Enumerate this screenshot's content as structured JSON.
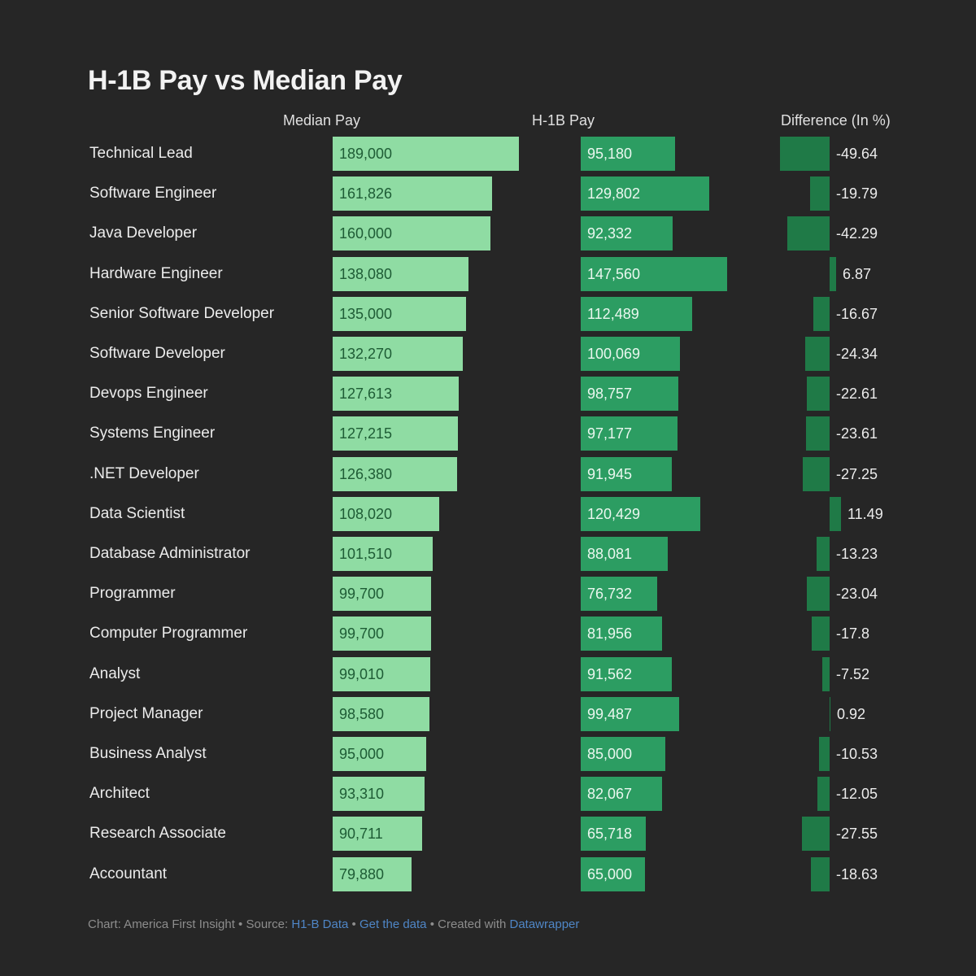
{
  "title": "H-1B Pay vs Median Pay",
  "columns": {
    "median": "Median Pay",
    "h1b": "H-1B Pay",
    "diff": "Difference (In %)"
  },
  "colors": {
    "background": "#262626",
    "median_bar": "#8fdca3",
    "h1b_bar": "#2c9d62",
    "diff_bar": "#1f7a47",
    "link": "#4f86c6"
  },
  "chart_data": {
    "type": "table",
    "columns": [
      "Median Pay",
      "H-1B Pay",
      "Difference (In %)"
    ],
    "rows": [
      {
        "label": "Technical Lead",
        "median": 189000,
        "median_text": "189,000",
        "h1b": 95180,
        "h1b_text": "95,180",
        "diff": -49.64,
        "diff_text": "-49.64"
      },
      {
        "label": "Software Engineer",
        "median": 161826,
        "median_text": "161,826",
        "h1b": 129802,
        "h1b_text": "129,802",
        "diff": -19.79,
        "diff_text": "-19.79"
      },
      {
        "label": "Java Developer",
        "median": 160000,
        "median_text": "160,000",
        "h1b": 92332,
        "h1b_text": "92,332",
        "diff": -42.29,
        "diff_text": "-42.29"
      },
      {
        "label": "Hardware Engineer",
        "median": 138080,
        "median_text": "138,080",
        "h1b": 147560,
        "h1b_text": "147,560",
        "diff": 6.87,
        "diff_text": "6.87"
      },
      {
        "label": "Senior Software Developer",
        "median": 135000,
        "median_text": "135,000",
        "h1b": 112489,
        "h1b_text": "112,489",
        "diff": -16.67,
        "diff_text": "-16.67"
      },
      {
        "label": "Software Developer",
        "median": 132270,
        "median_text": "132,270",
        "h1b": 100069,
        "h1b_text": "100,069",
        "diff": -24.34,
        "diff_text": "-24.34"
      },
      {
        "label": "Devops Engineer",
        "median": 127613,
        "median_text": "127,613",
        "h1b": 98757,
        "h1b_text": "98,757",
        "diff": -22.61,
        "diff_text": "-22.61"
      },
      {
        "label": "Systems Engineer",
        "median": 127215,
        "median_text": "127,215",
        "h1b": 97177,
        "h1b_text": "97,177",
        "diff": -23.61,
        "diff_text": "-23.61"
      },
      {
        "label": ".NET Developer",
        "median": 126380,
        "median_text": "126,380",
        "h1b": 91945,
        "h1b_text": "91,945",
        "diff": -27.25,
        "diff_text": "-27.25"
      },
      {
        "label": "Data Scientist",
        "median": 108020,
        "median_text": "108,020",
        "h1b": 120429,
        "h1b_text": "120,429",
        "diff": 11.49,
        "diff_text": "11.49"
      },
      {
        "label": "Database Administrator",
        "median": 101510,
        "median_text": "101,510",
        "h1b": 88081,
        "h1b_text": "88,081",
        "diff": -13.23,
        "diff_text": "-13.23"
      },
      {
        "label": "Programmer",
        "median": 99700,
        "median_text": "99,700",
        "h1b": 76732,
        "h1b_text": "76,732",
        "diff": -23.04,
        "diff_text": "-23.04"
      },
      {
        "label": "Computer Programmer",
        "median": 99700,
        "median_text": "99,700",
        "h1b": 81956,
        "h1b_text": "81,956",
        "diff": -17.8,
        "diff_text": "-17.8"
      },
      {
        "label": "Analyst",
        "median": 99010,
        "median_text": "99,010",
        "h1b": 91562,
        "h1b_text": "91,562",
        "diff": -7.52,
        "diff_text": "-7.52"
      },
      {
        "label": "Project Manager",
        "median": 98580,
        "median_text": "98,580",
        "h1b": 99487,
        "h1b_text": "99,487",
        "diff": 0.92,
        "diff_text": "0.92"
      },
      {
        "label": "Business Analyst",
        "median": 95000,
        "median_text": "95,000",
        "h1b": 85000,
        "h1b_text": "85,000",
        "diff": -10.53,
        "diff_text": "-10.53"
      },
      {
        "label": "Architect",
        "median": 93310,
        "median_text": "93,310",
        "h1b": 82067,
        "h1b_text": "82,067",
        "diff": -12.05,
        "diff_text": "-12.05"
      },
      {
        "label": "Research Associate",
        "median": 90711,
        "median_text": "90,711",
        "h1b": 65718,
        "h1b_text": "65,718",
        "diff": -27.55,
        "diff_text": "-27.55"
      },
      {
        "label": "Accountant",
        "median": 79880,
        "median_text": "79,880",
        "h1b": 65000,
        "h1b_text": "65,000",
        "diff": -18.63,
        "diff_text": "-18.63"
      }
    ]
  },
  "footer": {
    "prefix": "Chart: America First Insight • Source: ",
    "source_link": "H1-B Data",
    "sep1": " • ",
    "data_link": "Get the data",
    "middle": " • Created with ",
    "tool_link": "Datawrapper"
  }
}
